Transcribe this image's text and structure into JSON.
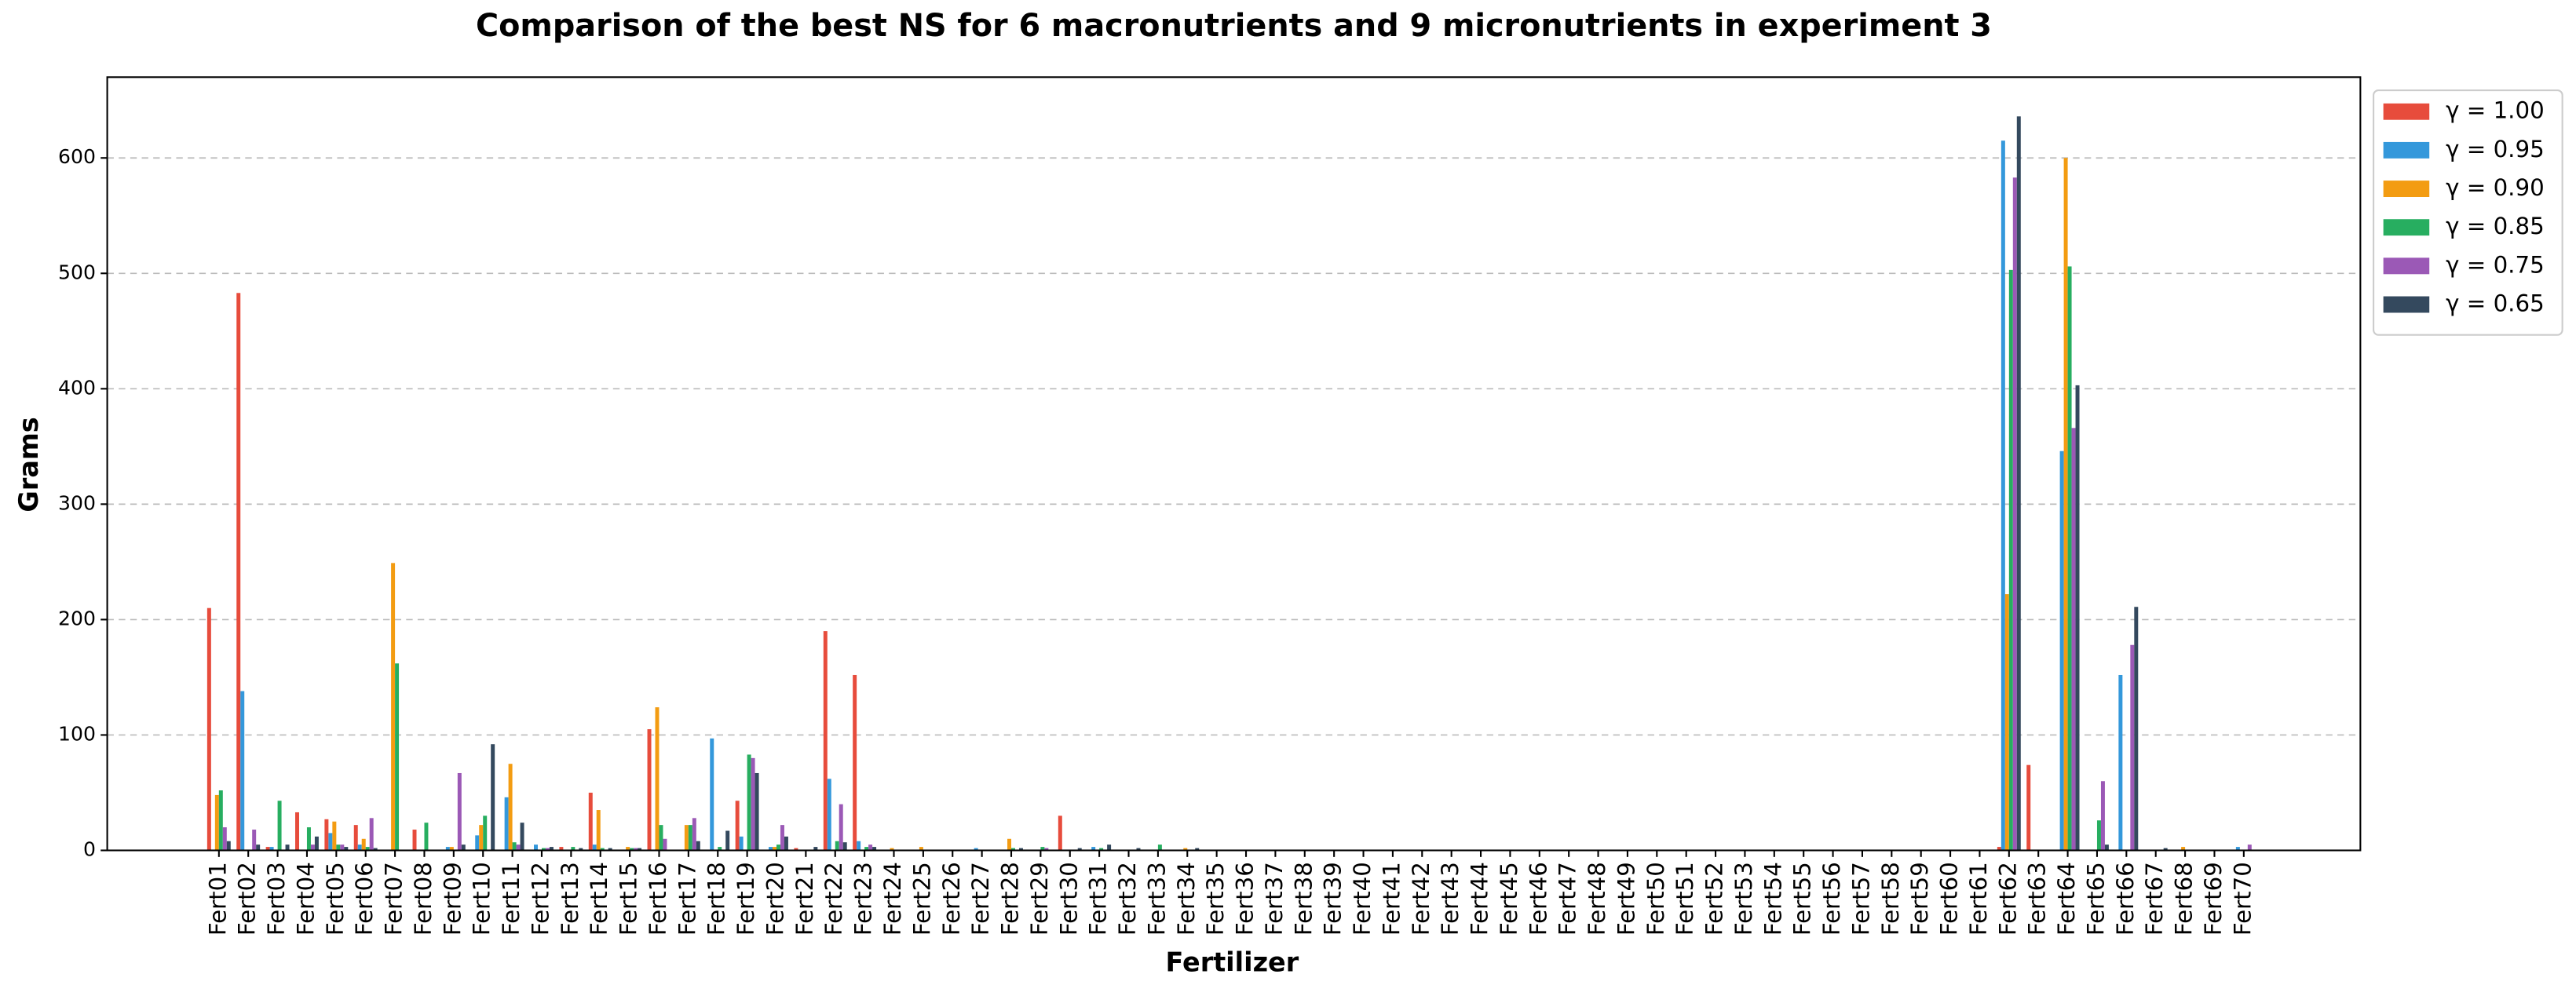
{
  "chart_data": {
    "type": "bar",
    "title": "Comparison of the best NS for 6 macronutrients and 9 micronutrients in experiment 3",
    "x_label": "Fertilizer",
    "y_label": "Grams",
    "categories": [
      "Fert01",
      "Fert02",
      "Fert03",
      "Fert04",
      "Fert05",
      "Fert06",
      "Fert07",
      "Fert08",
      "Fert09",
      "Fert10",
      "Fert11",
      "Fert12",
      "Fert13",
      "Fert14",
      "Fert15",
      "Fert16",
      "Fert17",
      "Fert18",
      "Fert19",
      "Fert20",
      "Fert21",
      "Fert22",
      "Fert23",
      "Fert24",
      "Fert25",
      "Fert26",
      "Fert27",
      "Fert28",
      "Fert29",
      "Fert30",
      "Fert31",
      "Fert32",
      "Fert33",
      "Fert34",
      "Fert35",
      "Fert36",
      "Fert37",
      "Fert38",
      "Fert39",
      "Fert40",
      "Fert41",
      "Fert42",
      "Fert43",
      "Fert44",
      "Fert45",
      "Fert46",
      "Fert47",
      "Fert48",
      "Fert49",
      "Fert50",
      "Fert51",
      "Fert52",
      "Fert53",
      "Fert54",
      "Fert55",
      "Fert56",
      "Fert57",
      "Fert58",
      "Fert59",
      "Fert60",
      "Fert61",
      "Fert62",
      "Fert63",
      "Fert64",
      "Fert65",
      "Fert66",
      "Fert67",
      "Fert68",
      "Fert69",
      "Fert70"
    ],
    "series": [
      {
        "name": "γ = 1.00",
        "color": "#e74c3c",
        "values": [
          210,
          483,
          3,
          33,
          27,
          22,
          0,
          18,
          0,
          0,
          0,
          0,
          3,
          50,
          0,
          105,
          0,
          0,
          43,
          0,
          2,
          190,
          152,
          0,
          0,
          0,
          0,
          0,
          0,
          30,
          0,
          0,
          0,
          0,
          0,
          0,
          0,
          0,
          0,
          0,
          0,
          0,
          0,
          0,
          0,
          0,
          0,
          0,
          0,
          0,
          0,
          0,
          0,
          0,
          0,
          0,
          0,
          0,
          0,
          0,
          0,
          3,
          74,
          0,
          0,
          0,
          0,
          0,
          0,
          0
        ]
      },
      {
        "name": "γ = 0.95",
        "color": "#3498db",
        "values": [
          0,
          138,
          3,
          0,
          15,
          5,
          0,
          0,
          3,
          13,
          46,
          5,
          0,
          5,
          0,
          0,
          0,
          97,
          12,
          3,
          0,
          62,
          8,
          0,
          0,
          0,
          2,
          0,
          0,
          0,
          3,
          0,
          0,
          0,
          0,
          0,
          0,
          0,
          0,
          0,
          0,
          0,
          0,
          0,
          0,
          0,
          0,
          0,
          0,
          0,
          0,
          0,
          0,
          0,
          0,
          0,
          0,
          0,
          0,
          0,
          0,
          615,
          0,
          346,
          0,
          152,
          0,
          0,
          0,
          3
        ]
      },
      {
        "name": "γ = 0.90",
        "color": "#f39c12",
        "values": [
          48,
          0,
          0,
          0,
          25,
          10,
          249,
          0,
          3,
          22,
          75,
          0,
          0,
          35,
          3,
          124,
          22,
          0,
          0,
          3,
          0,
          0,
          0,
          2,
          3,
          0,
          0,
          10,
          0,
          0,
          0,
          0,
          0,
          2,
          0,
          0,
          0,
          0,
          0,
          0,
          0,
          0,
          0,
          0,
          0,
          0,
          0,
          0,
          0,
          0,
          0,
          0,
          0,
          0,
          0,
          0,
          0,
          0,
          0,
          0,
          0,
          222,
          0,
          600,
          0,
          0,
          0,
          3,
          0,
          0
        ]
      },
      {
        "name": "γ = 0.85",
        "color": "#27ae60",
        "values": [
          52,
          0,
          43,
          20,
          5,
          3,
          162,
          24,
          0,
          30,
          7,
          2,
          3,
          2,
          2,
          22,
          22,
          3,
          83,
          5,
          0,
          8,
          3,
          0,
          0,
          0,
          0,
          2,
          3,
          0,
          2,
          0,
          5,
          0,
          0,
          0,
          0,
          0,
          0,
          0,
          0,
          0,
          0,
          0,
          0,
          0,
          0,
          0,
          0,
          0,
          0,
          0,
          0,
          0,
          0,
          0,
          0,
          0,
          0,
          0,
          0,
          503,
          0,
          506,
          26,
          0,
          0,
          0,
          0,
          0
        ]
      },
      {
        "name": "γ = 0.75",
        "color": "#9b59b6",
        "values": [
          20,
          18,
          0,
          5,
          5,
          28,
          0,
          0,
          67,
          0,
          5,
          2,
          0,
          0,
          2,
          10,
          28,
          0,
          80,
          22,
          0,
          40,
          5,
          0,
          0,
          0,
          0,
          0,
          2,
          0,
          0,
          0,
          0,
          0,
          0,
          0,
          0,
          0,
          0,
          0,
          0,
          0,
          0,
          0,
          0,
          0,
          0,
          0,
          0,
          0,
          0,
          0,
          0,
          0,
          0,
          0,
          0,
          0,
          0,
          0,
          0,
          583,
          0,
          366,
          60,
          178,
          0,
          0,
          0,
          5
        ]
      },
      {
        "name": "γ = 0.65",
        "color": "#34495e",
        "values": [
          8,
          5,
          5,
          12,
          3,
          2,
          0,
          0,
          5,
          92,
          24,
          3,
          2,
          2,
          2,
          0,
          8,
          17,
          67,
          12,
          3,
          7,
          3,
          0,
          0,
          0,
          0,
          2,
          0,
          2,
          5,
          2,
          0,
          2,
          0,
          0,
          0,
          0,
          0,
          0,
          0,
          0,
          0,
          0,
          0,
          0,
          0,
          0,
          0,
          0,
          0,
          0,
          0,
          0,
          0,
          0,
          0,
          0,
          0,
          0,
          0,
          636,
          0,
          403,
          5,
          211,
          2,
          0,
          0,
          0
        ]
      }
    ],
    "ylim": [
      0,
      670
    ],
    "yticks": [
      0,
      100,
      200,
      300,
      400,
      500,
      600
    ],
    "grid": true,
    "legend": "outside-right"
  }
}
